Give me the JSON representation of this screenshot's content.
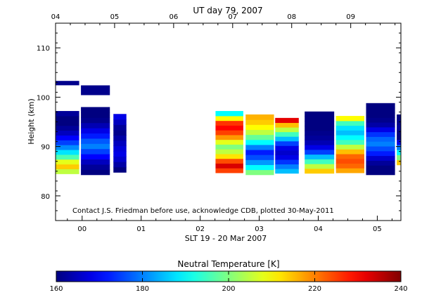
{
  "chart_data": {
    "type": "heatmap",
    "title": "UT day 79, 2007",
    "xlabel": "SLT 19 - 20 Mar 2007",
    "ylabel": "Height (km)",
    "x_range_hours": [
      -0.45,
      5.4
    ],
    "ylim": [
      75,
      115
    ],
    "bottom_ticks": [
      {
        "label": "00",
        "value": 0
      },
      {
        "label": "01",
        "value": 1
      },
      {
        "label": "02",
        "value": 2
      },
      {
        "label": "03",
        "value": 3
      },
      {
        "label": "04",
        "value": 4
      },
      {
        "label": "05",
        "value": 5
      }
    ],
    "top_ticks": [
      {
        "label": "04",
        "value": -0.45
      },
      {
        "label": "05",
        "value": 0.55
      },
      {
        "label": "06",
        "value": 1.55
      },
      {
        "label": "07",
        "value": 2.55
      },
      {
        "label": "08",
        "value": 3.55
      },
      {
        "label": "09",
        "value": 4.55
      }
    ],
    "y_ticks": [
      80,
      90,
      100,
      110
    ],
    "annotation": "Contact J.S. Friedman before use, acknowledge CDB, plotted 30-May-2011",
    "colorbar": {
      "label": "Neutral Temperature [K]",
      "min": 160,
      "max": 240,
      "ticks": [
        160,
        180,
        200,
        220,
        240
      ]
    },
    "series": [
      {
        "x0": -0.45,
        "x1": -0.05,
        "ybot": 84.5,
        "ytop": 97.2,
        "temps": [
          205,
          214,
          208,
          196,
          188,
          181,
          175,
          170,
          165,
          162,
          160,
          160,
          162
        ]
      },
      {
        "x0": -0.45,
        "x1": -0.05,
        "ybot": 102.5,
        "ytop": 103.3,
        "temps": [
          161
        ]
      },
      {
        "x0": -0.02,
        "x1": 0.47,
        "ybot": 84.3,
        "ytop": 98.0,
        "temps": [
          160,
          162,
          165,
          170,
          175,
          180,
          177,
          172,
          168,
          164,
          161,
          160,
          160
        ]
      },
      {
        "x0": -0.02,
        "x1": 0.47,
        "ybot": 100.5,
        "ytop": 102.4,
        "temps": [
          161
        ]
      },
      {
        "x0": 0.53,
        "x1": 0.75,
        "ybot": 84.8,
        "ytop": 96.6,
        "temps": [
          160,
          163,
          166,
          168,
          167,
          165,
          163,
          161,
          162,
          165,
          168
        ]
      },
      {
        "x0": 2.26,
        "x1": 2.73,
        "ybot": 84.7,
        "ytop": 97.2,
        "temps": [
          225,
          233,
          224,
          212,
          205,
          200,
          208,
          218,
          225,
          230,
          226,
          210,
          190
        ]
      },
      {
        "x0": 2.77,
        "x1": 3.25,
        "ybot": 84.3,
        "ytop": 96.5,
        "temps": [
          200,
          190,
          182,
          176,
          172,
          180,
          190,
          198,
          205,
          210,
          214,
          216
        ]
      },
      {
        "x0": 3.27,
        "x1": 3.67,
        "ybot": 84.6,
        "ytop": 95.8,
        "temps": [
          185,
          180,
          174,
          168,
          166,
          168,
          175,
          185,
          195,
          205,
          215,
          232
        ]
      },
      {
        "x0": 3.77,
        "x1": 4.27,
        "ybot": 84.6,
        "ytop": 97.1,
        "temps": [
          214,
          205,
          195,
          185,
          175,
          168,
          164,
          162,
          161,
          160,
          160,
          160,
          160
        ]
      },
      {
        "x0": 4.3,
        "x1": 4.78,
        "ybot": 84.7,
        "ytop": 96.2,
        "temps": [
          217,
          222,
          224,
          222,
          215,
          205,
          195,
          190,
          185,
          188,
          195,
          210
        ]
      },
      {
        "x0": 4.81,
        "x1": 5.3,
        "ybot": 84.3,
        "ytop": 98.8,
        "temps": [
          160,
          160,
          162,
          166,
          172,
          176,
          180,
          178,
          174,
          168,
          163,
          161,
          160,
          160,
          160
        ]
      },
      {
        "x0": 5.33,
        "x1": 5.4,
        "ybot": 86.3,
        "ytop": 96.5,
        "temps": [
          214,
          200,
          190,
          180,
          168,
          160,
          160,
          162,
          161,
          160
        ]
      }
    ]
  }
}
